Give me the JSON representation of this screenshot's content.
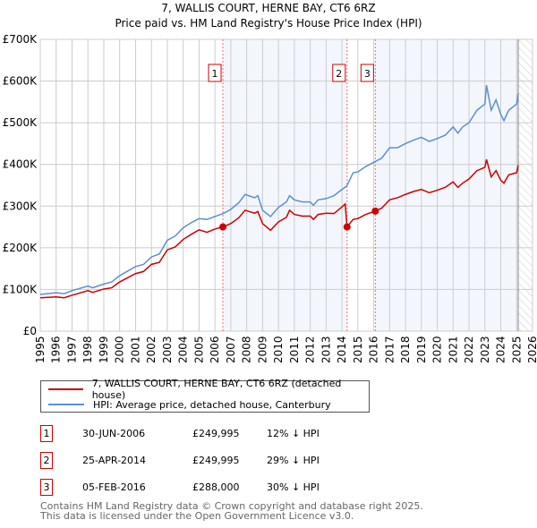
{
  "chart_data": {
    "type": "line",
    "title": "7, WALLIS COURT, HERNE BAY, CT6 6RZ",
    "subtitle": "Price paid vs. HM Land Registry's House Price Index (HPI)",
    "xlim": [
      1995,
      2026
    ],
    "ylim": [
      0,
      700000
    ],
    "x_ticks": [
      "1995",
      "1996",
      "1997",
      "1998",
      "1999",
      "2000",
      "2001",
      "2002",
      "2003",
      "2004",
      "2005",
      "2006",
      "2007",
      "2008",
      "2009",
      "2010",
      "2011",
      "2012",
      "2013",
      "2014",
      "2015",
      "2016",
      "2017",
      "2018",
      "2019",
      "2020",
      "2021",
      "2022",
      "2023",
      "2024",
      "2025",
      "2026"
    ],
    "y_ticks": [
      {
        "v": 0,
        "label": "£0"
      },
      {
        "v": 100000,
        "label": "£100K"
      },
      {
        "v": 200000,
        "label": "£200K"
      },
      {
        "v": 300000,
        "label": "£300K"
      },
      {
        "v": 400000,
        "label": "£400K"
      },
      {
        "v": 500000,
        "label": "£500K"
      },
      {
        "v": 600000,
        "label": "£600K"
      },
      {
        "v": 700000,
        "label": "£700K"
      }
    ],
    "grid": true,
    "forecast_start": 2025.1,
    "series": [
      {
        "name": "7, WALLIS COURT, HERNE BAY, CT6 6RZ (detached house)",
        "color": "#cc0000",
        "x": [
          1995,
          1996,
          1996.5,
          1997,
          1998,
          1998.3,
          1999,
          1999.5,
          2000,
          2001,
          2001.5,
          2002,
          2002.5,
          2003,
          2003.5,
          2004,
          2004.5,
          2005,
          2005.5,
          2006,
          2006.5,
          2007,
          2007.5,
          2007.9,
          2008.5,
          2008.7,
          2009,
          2009.5,
          2010,
          2010.5,
          2010.7,
          2011,
          2011.5,
          2012,
          2012.2,
          2012.5,
          2013,
          2013.5,
          2014,
          2014.2,
          2014.32,
          2014.7,
          2015,
          2015.5,
          2016.1,
          2016.5,
          2017,
          2017.5,
          2018,
          2018.5,
          2019,
          2019.5,
          2020,
          2020.5,
          2021,
          2021.3,
          2021.6,
          2022,
          2022.5,
          2023,
          2023.1,
          2023.4,
          2023.7,
          2024,
          2024.2,
          2024.5,
          2025,
          2025.1
        ],
        "y": [
          80,
          82,
          80,
          86,
          97,
          93,
          101,
          104,
          118,
          138,
          143,
          160,
          165,
          195,
          202,
          220,
          232,
          243,
          237,
          245,
          250,
          258,
          272,
          290,
          283,
          287,
          258,
          242,
          262,
          273,
          290,
          280,
          276,
          276,
          268,
          280,
          283,
          282,
          298,
          305,
          250,
          268,
          270,
          280,
          288,
          295,
          315,
          320,
          328,
          335,
          340,
          332,
          338,
          345,
          358,
          345,
          355,
          365,
          385,
          393,
          412,
          370,
          385,
          362,
          355,
          375,
          380,
          398
        ],
        "unit": "thousand GBP"
      },
      {
        "name": "HPI: Average price, detached house, Canterbury",
        "color": "#5b8fd0",
        "x": [
          1995,
          1996,
          1996.5,
          1997,
          1998,
          1998.3,
          1999,
          1999.5,
          2000,
          2001,
          2001.5,
          2002,
          2002.5,
          2003,
          2003.5,
          2004,
          2004.5,
          2005,
          2005.5,
          2006,
          2006.5,
          2007,
          2007.5,
          2007.9,
          2008.5,
          2008.7,
          2009,
          2009.5,
          2010,
          2010.5,
          2010.7,
          2011,
          2011.5,
          2012,
          2012.2,
          2012.5,
          2013,
          2013.5,
          2014,
          2014.3,
          2014.7,
          2015,
          2015.5,
          2016.1,
          2016.5,
          2017,
          2017.5,
          2018,
          2018.5,
          2019,
          2019.5,
          2020,
          2020.5,
          2021,
          2021.3,
          2021.6,
          2022,
          2022.5,
          2023,
          2023.1,
          2023.4,
          2023.7,
          2024,
          2024.2,
          2024.5,
          2025,
          2025.1
        ],
        "y": [
          88,
          92,
          90,
          97,
          108,
          104,
          113,
          118,
          133,
          155,
          160,
          178,
          185,
          218,
          228,
          248,
          260,
          270,
          268,
          275,
          282,
          292,
          308,
          328,
          320,
          325,
          290,
          275,
          297,
          310,
          325,
          315,
          310,
          310,
          302,
          315,
          318,
          325,
          340,
          348,
          380,
          382,
          395,
          407,
          415,
          440,
          440,
          450,
          458,
          465,
          455,
          462,
          470,
          490,
          475,
          490,
          500,
          530,
          545,
          590,
          530,
          555,
          520,
          505,
          530,
          545,
          570
        ],
        "unit": "thousand GBP"
      }
    ],
    "sales": [
      {
        "id": "1",
        "x": 2006.5,
        "price": 249995
      },
      {
        "id": "2",
        "x": 2014.32,
        "price": 249995
      },
      {
        "id": "3",
        "x": 2016.1,
        "price": 288000
      }
    ]
  },
  "legend": {
    "property": "7, WALLIS COURT, HERNE BAY, CT6 6RZ (detached house)",
    "hpi": "HPI: Average price, detached house, Canterbury"
  },
  "transactions": [
    {
      "id": "1",
      "date": "30-JUN-2006",
      "price": "£249,995",
      "diff": "12% ↓ HPI"
    },
    {
      "id": "2",
      "date": "25-APR-2014",
      "price": "£249,995",
      "diff": "29% ↓ HPI"
    },
    {
      "id": "3",
      "date": "05-FEB-2016",
      "price": "£288,000",
      "diff": "30% ↓ HPI"
    }
  ],
  "footer": {
    "line1": "Contains HM Land Registry data © Crown copyright and database right 2025.",
    "line2": "This data is licensed under the Open Government Licence v3.0."
  }
}
